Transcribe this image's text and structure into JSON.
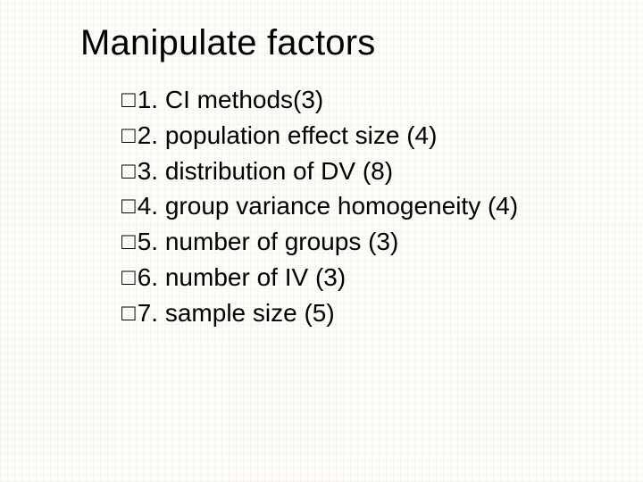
{
  "slide": {
    "title": "Manipulate factors",
    "title_fontsize": 40,
    "body_fontsize": 28,
    "bullet_glyph": "□",
    "background_color": "#fdfcf8",
    "text_color": "#000000",
    "items": [
      {
        "num": "1.",
        "text": "CI methods(3)"
      },
      {
        "num": "2.",
        "text": "population effect size (4)"
      },
      {
        "num": "3.",
        "text": "distribution of DV (8)"
      },
      {
        "num": "4.",
        "text": "group variance homogeneity (4)"
      },
      {
        "num": "5.",
        "text": "number of groups (3)"
      },
      {
        "num": "6.",
        "text": "number of IV (3)"
      },
      {
        "num": "7.",
        "text": "sample size (5)"
      }
    ]
  }
}
